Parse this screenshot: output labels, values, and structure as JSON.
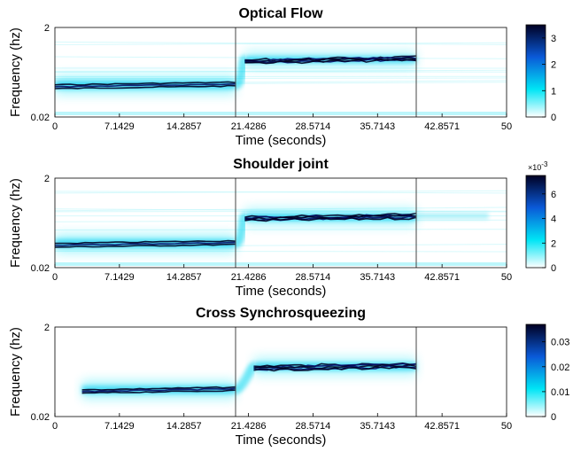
{
  "colors": {
    "low": "#ffffff",
    "mid": "#00e5f5",
    "high": "#000022",
    "frame": "#000000",
    "marker": "#444444"
  },
  "chart_data": [
    {
      "type": "heatmap",
      "title": "Optical Flow",
      "xlabel": "Time (seconds)",
      "ylabel": "Frequency (hz)",
      "xlim": [
        0,
        50
      ],
      "xticks": [
        "0",
        "7.1429",
        "14.2857",
        "21.4286",
        "28.5714",
        "35.7143",
        "42.8571",
        "50"
      ],
      "yticks": [
        "2",
        "0.02"
      ],
      "yscale": "log",
      "markers_x": [
        20,
        40
      ],
      "colorbar": {
        "ticks": [
          "0",
          "1",
          "2",
          "3"
        ],
        "max": 3.5,
        "exponent": ""
      },
      "bands": [
        {
          "t0": 0,
          "t1": 20,
          "f0": 0.09,
          "f1": 0.12,
          "intensity": 3.3
        },
        {
          "t0": 21,
          "t1": 40,
          "f0": 0.35,
          "f1": 0.42,
          "intensity": 2.8
        }
      ]
    },
    {
      "type": "heatmap",
      "title": "Shoulder joint",
      "xlabel": "Time (seconds)",
      "ylabel": "Frequency (hz)",
      "xlim": [
        0,
        50
      ],
      "xticks": [
        "0",
        "7.1429",
        "14.2857",
        "21.4286",
        "28.5714",
        "35.7143",
        "42.8571",
        "50"
      ],
      "yticks": [
        "2",
        "0.02"
      ],
      "yscale": "log",
      "markers_x": [
        20,
        40
      ],
      "colorbar": {
        "ticks": [
          "0",
          "2",
          "4",
          "6"
        ],
        "max": 7.5,
        "exponent": "×10",
        "exponent_power": "-3"
      },
      "bands": [
        {
          "t0": 0,
          "t1": 20,
          "f0": 0.06,
          "f1": 0.08,
          "intensity": 7.0
        },
        {
          "t0": 21,
          "t1": 40,
          "f0": 0.24,
          "f1": 0.3,
          "intensity": 6.5
        }
      ]
    },
    {
      "type": "heatmap",
      "title": "Cross Synchrosqueezing",
      "xlabel": "Time (seconds)",
      "ylabel": "Frequency (hz)",
      "xlim": [
        0,
        50
      ],
      "xticks": [
        "0",
        "7.1429",
        "14.2857",
        "21.4286",
        "28.5714",
        "35.7143",
        "42.8571",
        "50"
      ],
      "yticks": [
        "2",
        "0.02"
      ],
      "yscale": "log",
      "markers_x": [
        20,
        40
      ],
      "colorbar": {
        "ticks": [
          "0",
          "0.01",
          "0.02",
          "0.03"
        ],
        "max": 0.037,
        "exponent": ""
      },
      "bands": [
        {
          "t0": 3,
          "t1": 20,
          "f0": 0.07,
          "f1": 0.09,
          "intensity": 0.034
        },
        {
          "t0": 22,
          "t1": 40,
          "f0": 0.23,
          "f1": 0.3,
          "intensity": 0.03
        }
      ]
    }
  ]
}
